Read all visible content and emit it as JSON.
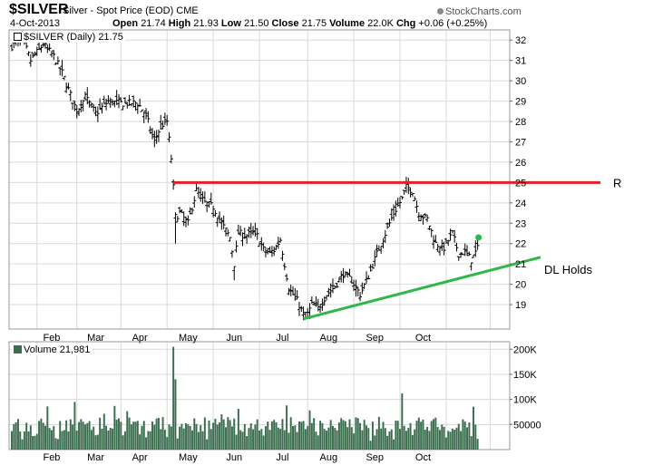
{
  "header": {
    "symbol": "$SILVER",
    "description": "Silver - Spot Price (EOD)  CME",
    "brand": "StockCharts.com",
    "date": "4-Oct-2013",
    "open_label": "Open",
    "open": "21.74",
    "high_label": "High",
    "high": "21.93",
    "low_label": "Low",
    "low": "21.50",
    "close_label": "Close",
    "close": "21.75",
    "volume_label": "Volume",
    "volume": "22.0K",
    "chg_label": "Chg",
    "chg": "+0.06 (+0.25%)"
  },
  "legend": {
    "price": "$SILVER (Daily) 21.75",
    "volume": "Volume 21,981"
  },
  "colors": {
    "price_bars": "#000000",
    "volume_bars": "#3b6e4f",
    "resistance_line": "#e0202a",
    "trend_line": "#2fb84a",
    "last_marker": "#2fb84a",
    "grid": "#d9d9d9"
  },
  "chart_data": [
    {
      "type": "ohlc",
      "x_unit": "trading day (Jan 2013 - 4 Oct 2013)",
      "x_ticks": [
        "Feb",
        "Mar",
        "Apr",
        "May",
        "Jun",
        "Jul",
        "Aug",
        "Sep",
        "Oct"
      ],
      "ylim": [
        17.8,
        32.5
      ],
      "y_ticks": [
        19,
        20,
        21,
        22,
        23,
        24,
        25,
        26,
        27,
        28,
        29,
        30,
        31,
        32
      ],
      "grid": true,
      "close_path": [
        [
          0,
          31.7
        ],
        [
          5,
          32.1
        ],
        [
          9,
          31.0
        ],
        [
          15,
          31.8
        ],
        [
          20,
          31.2
        ],
        [
          24,
          30.4
        ],
        [
          28,
          29.3
        ],
        [
          31,
          28.5
        ],
        [
          35,
          29.2
        ],
        [
          40,
          28.4
        ],
        [
          46,
          29.0
        ],
        [
          52,
          28.9
        ],
        [
          60,
          28.9
        ],
        [
          64,
          28.3
        ],
        [
          68,
          27.0
        ],
        [
          71,
          27.8
        ],
        [
          74,
          28.0
        ],
        [
          76,
          26.2
        ],
        [
          78,
          23.3
        ],
        [
          80,
          23.5
        ],
        [
          84,
          23.0
        ],
        [
          88,
          24.6
        ],
        [
          92,
          24.0
        ],
        [
          96,
          23.8
        ],
        [
          100,
          23.0
        ],
        [
          104,
          22.3
        ],
        [
          106,
          21.0
        ],
        [
          108,
          22.5
        ],
        [
          112,
          22.4
        ],
        [
          116,
          22.6
        ],
        [
          120,
          21.7
        ],
        [
          124,
          21.5
        ],
        [
          128,
          22.2
        ],
        [
          132,
          19.8
        ],
        [
          136,
          19.2
        ],
        [
          140,
          18.3
        ],
        [
          143,
          19.0
        ],
        [
          146,
          18.8
        ],
        [
          150,
          19.5
        ],
        [
          154,
          19.9
        ],
        [
          158,
          20.5
        ],
        [
          162,
          20.2
        ],
        [
          166,
          19.5
        ],
        [
          170,
          20.4
        ],
        [
          174,
          21.5
        ],
        [
          178,
          22.5
        ],
        [
          182,
          23.5
        ],
        [
          186,
          24.2
        ],
        [
          188,
          24.8
        ],
        [
          191,
          24.6
        ],
        [
          194,
          23.5
        ],
        [
          198,
          23.2
        ],
        [
          202,
          22.0
        ],
        [
          206,
          21.8
        ],
        [
          210,
          22.5
        ],
        [
          213,
          21.5
        ],
        [
          216,
          21.6
        ],
        [
          219,
          21.2
        ],
        [
          222,
          21.75
        ]
      ],
      "annotations": [
        {
          "label": "R",
          "kind": "horizontal line",
          "value": 25.0,
          "x_start": 77
        },
        {
          "label": "DL Holds",
          "kind": "trend line",
          "from": [
            139,
            18.3
          ],
          "to": [
            236,
            20.9
          ]
        }
      ]
    },
    {
      "type": "bar",
      "series": "Volume",
      "ylim": [
        0,
        215000
      ],
      "y_ticks": [
        50000,
        100000,
        150000,
        200000
      ],
      "y_tick_labels": [
        "50000",
        "100K",
        "150K",
        "200K"
      ],
      "x_ticks": [
        "Feb",
        "Mar",
        "Apr",
        "May",
        "Jun",
        "Jul",
        "Aug",
        "Sep",
        "Oct"
      ],
      "typical_range": [
        35000,
        65000
      ],
      "spikes": [
        [
          30,
          95000
        ],
        [
          77,
          205000
        ],
        [
          78,
          140000
        ],
        [
          131,
          88000
        ],
        [
          186,
          112000
        ]
      ]
    }
  ]
}
